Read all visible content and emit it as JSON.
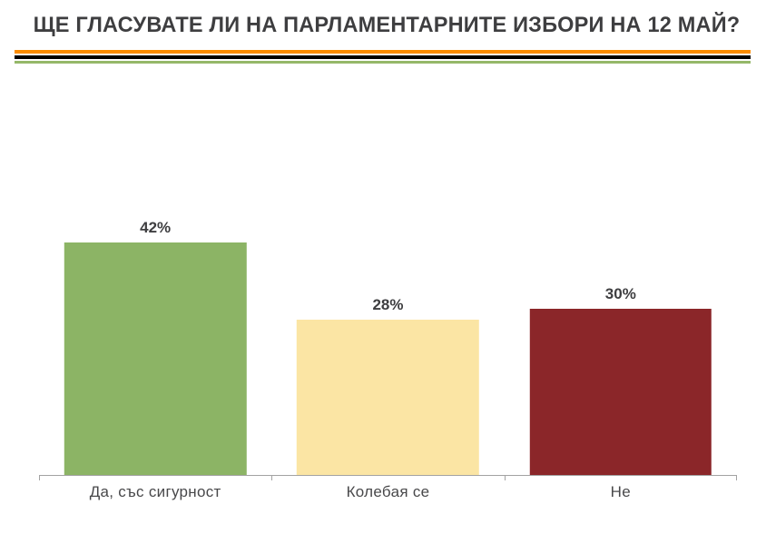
{
  "header": {
    "title": "ЩЕ ГЛАСУВАТЕ ЛИ НА ПАРЛАМЕНТАРНИТЕ ИЗБОРИ НА 12 МАЙ?"
  },
  "separator": {
    "line_colors": [
      "#fb8c00",
      "#000000",
      "#95b869"
    ]
  },
  "chart_data": {
    "type": "bar",
    "title": "ЩЕ ГЛАСУВАТЕ ЛИ НА ПАРЛАМЕНТАРНИТЕ ИЗБОРИ НА 12 МАЙ?",
    "categories": [
      "Да, със сигурност",
      "Колебая се",
      "Не"
    ],
    "values": [
      42,
      28,
      30
    ],
    "data_labels": [
      "42%",
      "28%",
      "30%"
    ],
    "bar_colors": [
      "#8cb465",
      "#fbe5a4",
      "#8b2629"
    ],
    "xlabel": "",
    "ylabel": "",
    "ylim": [
      0,
      45
    ],
    "grid": false,
    "legend": "none",
    "y_axis": "hidden",
    "x_axis_line_color": "#a3a3a3",
    "data_label_position": "above-bar"
  }
}
